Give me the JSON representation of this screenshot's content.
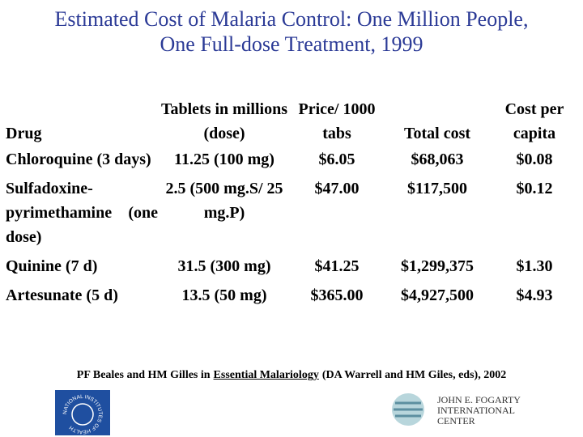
{
  "title": {
    "lines": [
      "Estimated Cost of Malaria Control:  One Million People,",
      "One Full-dose Treatment, 1999"
    ]
  },
  "table": {
    "header": [
      "Drug",
      "Tablets in millions (dose)",
      "Price/ 1000 tabs",
      "Total cost",
      "Cost per capita"
    ],
    "rows": [
      [
        "Chloroquine (3 days)",
        "11.25 (100 mg)",
        "$6.05",
        "$68,063",
        "$0.08"
      ],
      [
        "Sulfadoxine-pyrimethamine (one dose)",
        "2.5 (500 mg.S/ 25 mg.P)",
        "$47.00",
        "$117,500",
        "$0.12"
      ],
      [
        "Quinine (7 d)",
        "31.5 (300 mg)",
        "$41.25",
        "$1,299,375",
        "$1.30"
      ],
      [
        "Artesunate (5 d)",
        "13.5 (50 mg)",
        "$365.00",
        "$4,927,500",
        "$4.93"
      ]
    ]
  },
  "citation": {
    "before": "PF Beales and HM Gilles in",
    "book": "Essential Malariology",
    "after": "(DA Warrell and HM Giles, eds), 2002"
  },
  "logos": {
    "nih": "NATIONAL INSTITUTES OF HEALTH",
    "fogarty": [
      "JOHN E. FOGARTY",
      "INTERNATIONAL",
      "CENTER"
    ]
  }
}
